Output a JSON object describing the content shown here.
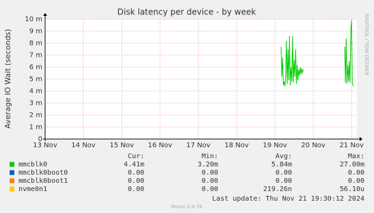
{
  "chart_data": {
    "type": "line",
    "title": "Disk latency per device - by week",
    "y_label": "Average IO Wait (seconds)",
    "watermark": "RRDTOOL / TOBI OETIKER",
    "last_update": "Last update: Thu Nov 21 19:30:12 2024",
    "footer": "Munin 2.0.76",
    "grid": true,
    "xlim": [
      13,
      21.14
    ],
    "xticks": [
      {
        "value": 13,
        "label": "13 Nov"
      },
      {
        "value": 14,
        "label": "14 Nov"
      },
      {
        "value": 15,
        "label": "15 Nov"
      },
      {
        "value": 16,
        "label": "16 Nov"
      },
      {
        "value": 17,
        "label": "17 Nov"
      },
      {
        "value": 18,
        "label": "18 Nov"
      },
      {
        "value": 19,
        "label": "19 Nov"
      },
      {
        "value": 20,
        "label": "20 Nov"
      },
      {
        "value": 21,
        "label": "21 Nov"
      }
    ],
    "ylim": [
      0,
      0.01
    ],
    "yticks": [
      0,
      {
        "value": 0.001,
        "label": "1 m"
      },
      {
        "value": 0.002,
        "label": "2 m"
      },
      {
        "value": 0.003,
        "label": "3 m"
      },
      {
        "value": 0.004,
        "label": "4 m"
      },
      {
        "value": 0.005,
        "label": "5 m"
      },
      {
        "value": 0.006,
        "label": "6 m"
      },
      {
        "value": 0.007,
        "label": "7 m"
      },
      {
        "value": 0.008,
        "label": "8 m"
      },
      {
        "value": 0.009,
        "label": "9 m"
      },
      {
        "value": 0.01,
        "label": "10 m"
      }
    ],
    "stat_headers": [
      "Cur:",
      "Min:",
      "Avg:",
      "Max:"
    ],
    "series": [
      {
        "name": "mmcblk0",
        "color": "#00cc00",
        "x": [
          19.16,
          19.18,
          19.2,
          19.22,
          19.24,
          19.26,
          19.28,
          19.3,
          19.32,
          19.34,
          19.36,
          19.38,
          19.4,
          19.42,
          19.44,
          19.46,
          19.48,
          19.5,
          19.52,
          19.54,
          19.56,
          19.58,
          19.6,
          19.62,
          19.64,
          19.66,
          19.68,
          19.7,
          19.72,
          19.74,
          20.3,
          20.82,
          20.84,
          20.86,
          20.88,
          20.9,
          20.92,
          20.94,
          20.96,
          20.98,
          21.0,
          21.02,
          21.04,
          21.06
        ],
        "values": [
          0.0077,
          0.0052,
          0.0068,
          0.0045,
          0.0048,
          0.0044,
          0.0053,
          0.0082,
          0.0046,
          0.0075,
          0.0049,
          0.0086,
          0.0045,
          0.006,
          0.0048,
          0.0086,
          0.0047,
          0.0066,
          0.0052,
          0.0075,
          0.0046,
          0.0062,
          0.0049,
          0.0058,
          0.0053,
          0.006,
          0.0054,
          0.0059,
          0.0055,
          0.0058,
          null,
          0.0077,
          0.0047,
          0.0084,
          0.0046,
          0.0062,
          0.0048,
          0.0065,
          0.0047,
          0.009,
          0.0099,
          0.0046,
          0.0045,
          0.0044
        ],
        "stats": [
          "4.41m",
          "3.20m",
          "5.84m",
          "27.00m"
        ]
      },
      {
        "name": "mmcblk0boot0",
        "color": "#0066b3",
        "stats": [
          "0.00",
          "0.00",
          "0.00",
          "0.00"
        ]
      },
      {
        "name": "mmcblk0boot1",
        "color": "#ff8000",
        "stats": [
          "0.00",
          "0.00",
          "0.00",
          "0.00"
        ]
      },
      {
        "name": "nvme0n1",
        "color": "#ffcc00",
        "stats": [
          "0.00",
          "0.00",
          "219.26n",
          "56.10u"
        ]
      }
    ]
  }
}
